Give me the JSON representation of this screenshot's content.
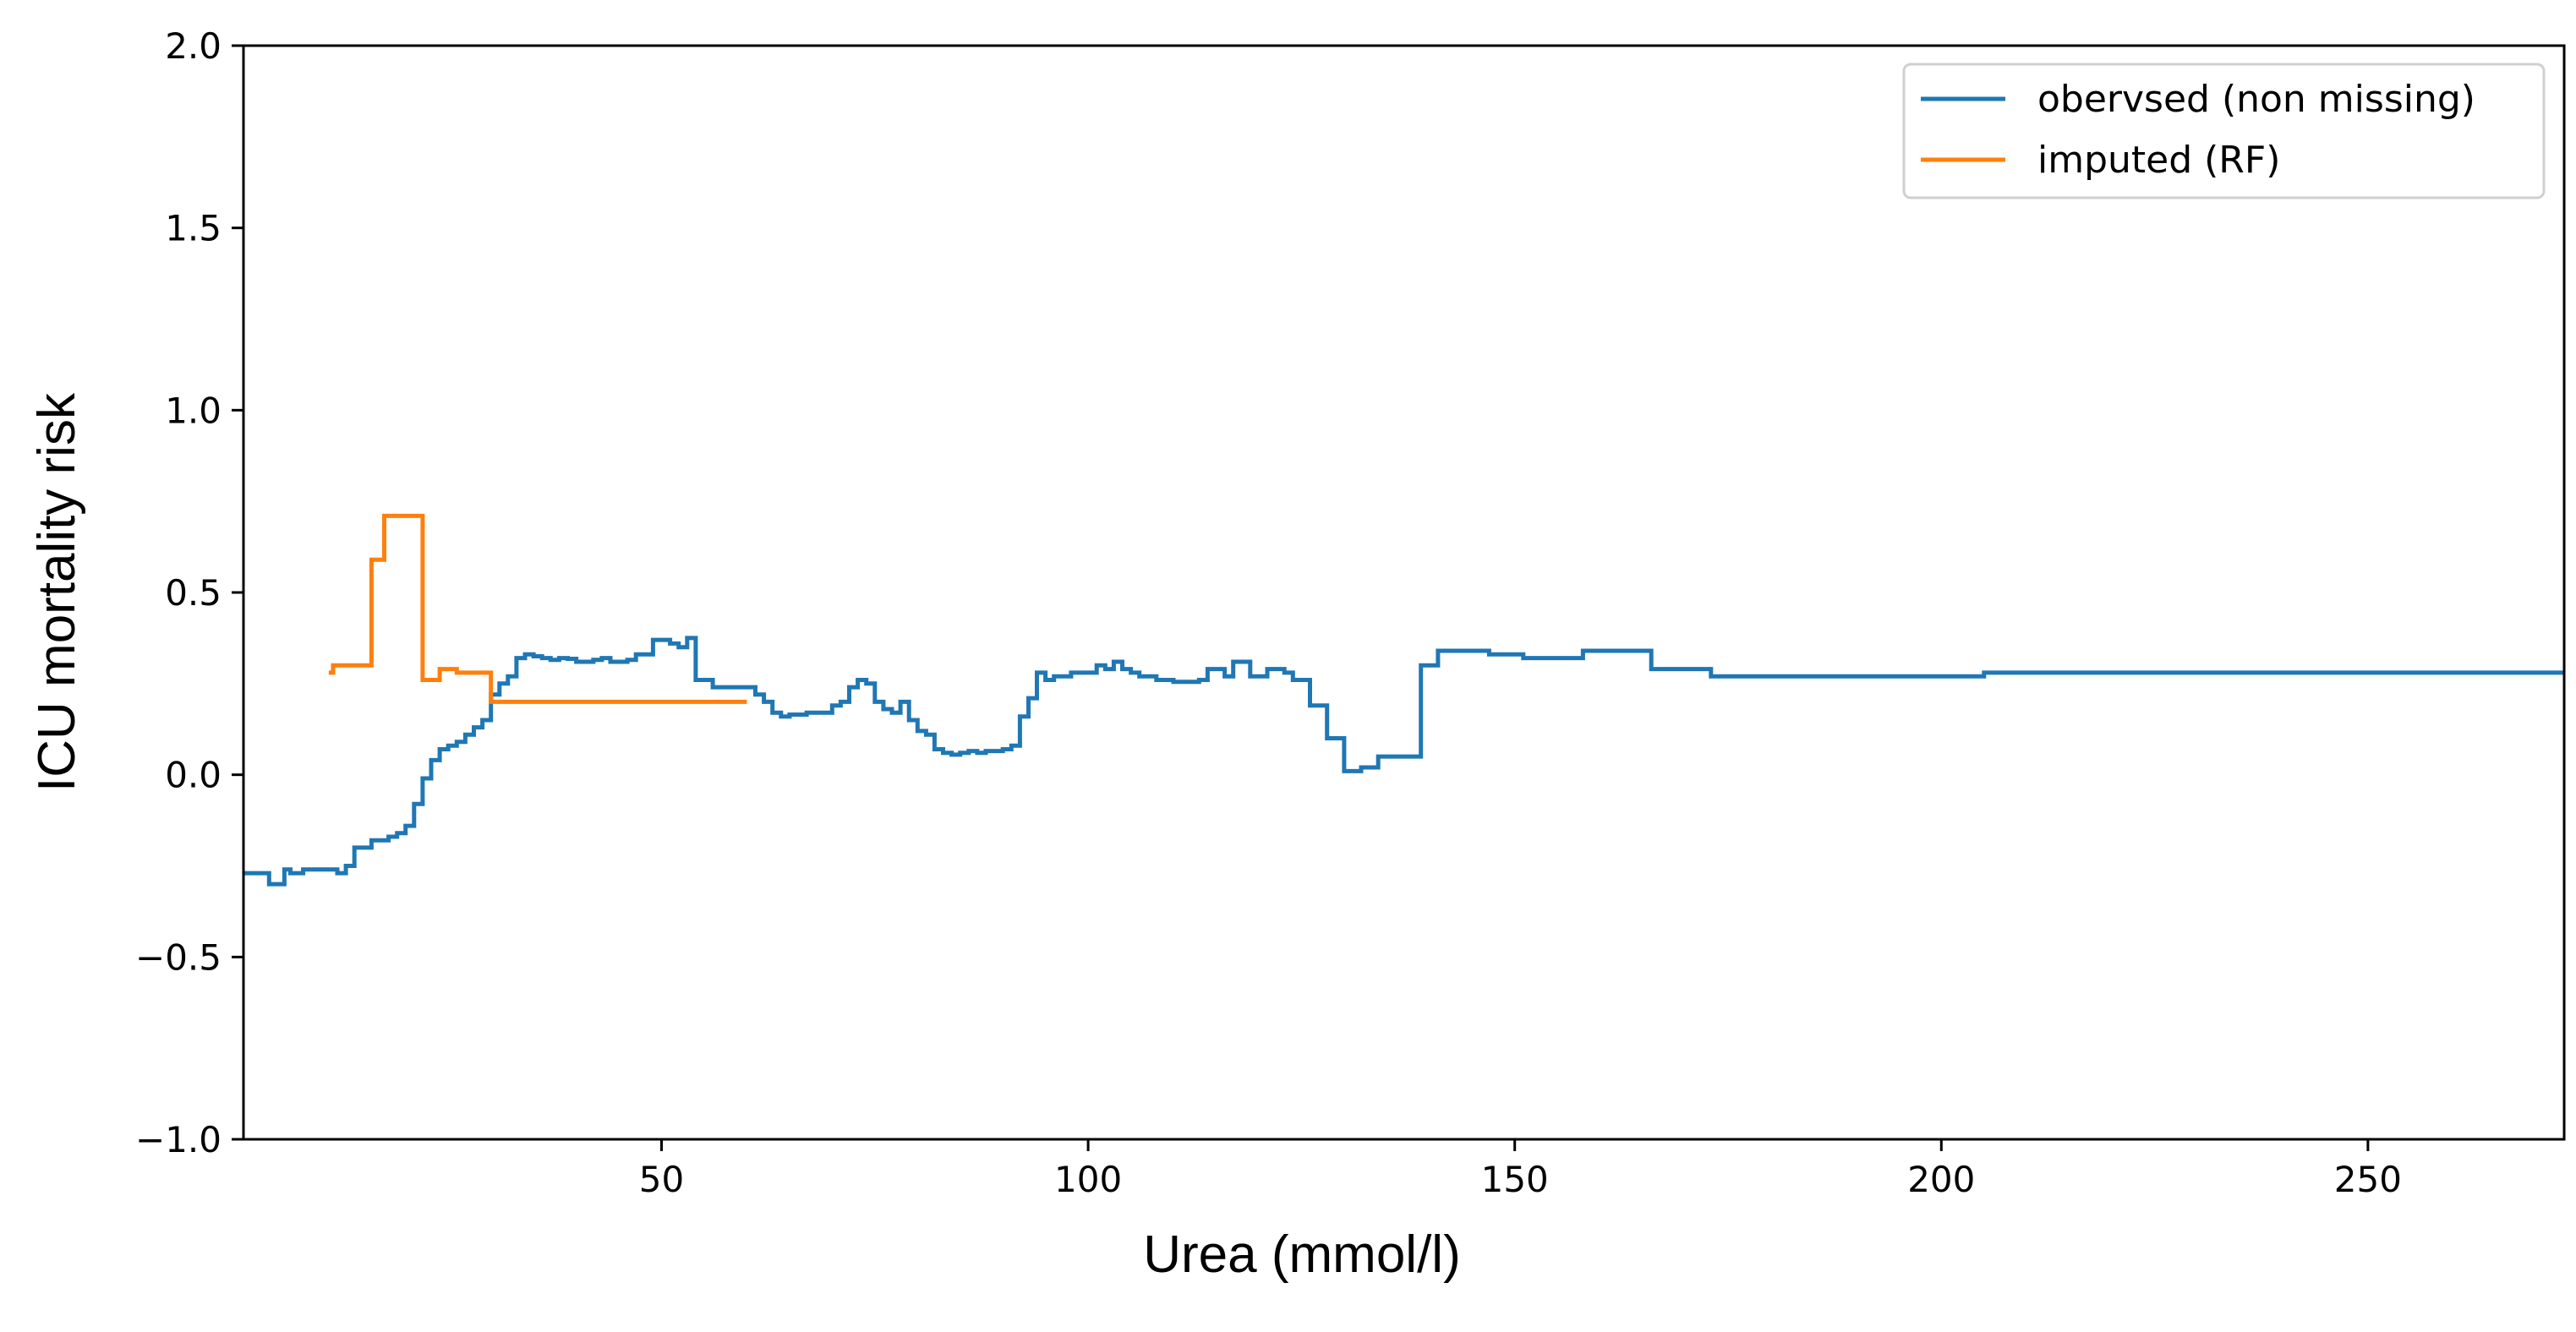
{
  "chart_data": {
    "type": "line",
    "step": "post",
    "title": "",
    "xlabel": "Urea (mmol/l)",
    "ylabel": "ICU mortality risk",
    "xlim": [
      1,
      273
    ],
    "ylim": [
      -1.0,
      2.0
    ],
    "xticks": [
      50,
      100,
      150,
      200,
      250
    ],
    "xtick_labels": [
      "50",
      "100",
      "150",
      "200",
      "250"
    ],
    "yticks": [
      -1.0,
      -0.5,
      0.0,
      0.5,
      1.0,
      1.5,
      2.0
    ],
    "ytick_labels": [
      "−1.0",
      "−0.5",
      "0.0",
      "0.5",
      "1.0",
      "1.5",
      "2.0"
    ],
    "grid": false,
    "legend_position": "top-right",
    "series": [
      {
        "name": "obervsed (non missing)",
        "color": "#1f77b4",
        "x": [
          1,
          4,
          5,
          5.8,
          6.5,
          8,
          10,
          12,
          13,
          14,
          16,
          18,
          19,
          20,
          21,
          22,
          23,
          24,
          25,
          26,
          27,
          28,
          29,
          30,
          31,
          32,
          33,
          34,
          35,
          36,
          37,
          38,
          39,
          40,
          42,
          43,
          44,
          46,
          47,
          49,
          51,
          52,
          53,
          54,
          56,
          58,
          59,
          61,
          62,
          63,
          64,
          65,
          67,
          70,
          71,
          72,
          73,
          74,
          75,
          76,
          77,
          78,
          79,
          80,
          81,
          82,
          83,
          84,
          85,
          86,
          87,
          88,
          90,
          91,
          92,
          93,
          94,
          95,
          96,
          97,
          98,
          101,
          102,
          103,
          104,
          105,
          106,
          108,
          110,
          113,
          114,
          116,
          117,
          119,
          121,
          123,
          124,
          125,
          126,
          128,
          130,
          132,
          134,
          138,
          139,
          141,
          147,
          151,
          158,
          166,
          173,
          205,
          273
        ],
        "y": [
          -0.27,
          -0.3,
          -0.3,
          -0.26,
          -0.27,
          -0.26,
          -0.26,
          -0.27,
          -0.25,
          -0.2,
          -0.18,
          -0.17,
          -0.16,
          -0.14,
          -0.08,
          -0.01,
          0.04,
          0.07,
          0.08,
          0.09,
          0.11,
          0.13,
          0.15,
          0.22,
          0.25,
          0.27,
          0.32,
          0.33,
          0.325,
          0.32,
          0.315,
          0.32,
          0.318,
          0.31,
          0.315,
          0.32,
          0.31,
          0.315,
          0.33,
          0.37,
          0.36,
          0.35,
          0.375,
          0.26,
          0.24,
          0.24,
          0.24,
          0.22,
          0.2,
          0.17,
          0.16,
          0.165,
          0.17,
          0.19,
          0.2,
          0.24,
          0.26,
          0.25,
          0.2,
          0.18,
          0.17,
          0.2,
          0.15,
          0.12,
          0.11,
          0.07,
          0.06,
          0.055,
          0.06,
          0.065,
          0.06,
          0.065,
          0.07,
          0.08,
          0.16,
          0.21,
          0.28,
          0.26,
          0.27,
          0.27,
          0.28,
          0.3,
          0.29,
          0.31,
          0.29,
          0.28,
          0.27,
          0.26,
          0.255,
          0.26,
          0.29,
          0.27,
          0.31,
          0.27,
          0.29,
          0.28,
          0.26,
          0.26,
          0.19,
          0.1,
          0.01,
          0.02,
          0.05,
          0.05,
          0.3,
          0.34,
          0.33,
          0.32,
          0.34,
          0.29,
          0.27,
          0.28,
          0.28
        ]
      },
      {
        "name": "imputed (RF)",
        "color": "#ff7f0e",
        "x": [
          11,
          11.5,
          12.5,
          16,
          17.5,
          19,
          22,
          24,
          26,
          28,
          30,
          60
        ],
        "y": [
          0.28,
          0.3,
          0.3,
          0.59,
          0.71,
          0.71,
          0.26,
          0.29,
          0.28,
          0.28,
          0.2,
          0.2
        ]
      }
    ]
  }
}
